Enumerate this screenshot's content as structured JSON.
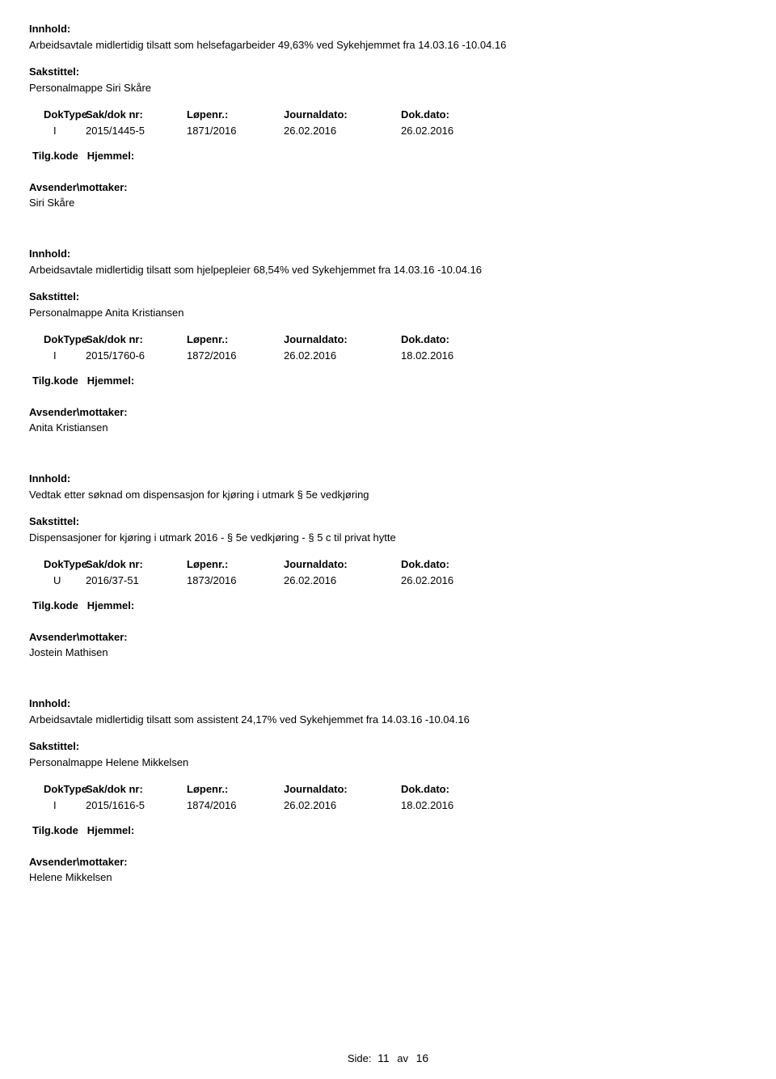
{
  "labels": {
    "innhold": "Innhold:",
    "sakstittel": "Sakstittel:",
    "doktype": "DokType",
    "sakdok": "Sak/dok nr:",
    "lopenr": "Løpenr.:",
    "journaldato": "Journaldato:",
    "dokdato": "Dok.dato:",
    "tilgkode": "Tilg.kode",
    "hjemmel": "Hjemmel:",
    "avsender": "Avsender\\mottaker:"
  },
  "records": [
    {
      "innhold": "Arbeidsavtale midlertidig tilsatt som helsefagarbeider 49,63% ved Sykehjemmet fra 14.03.16 -10.04.16",
      "sakstittel": "Personalmappe Siri Skåre",
      "doktype": "I",
      "sakdok": "2015/1445-5",
      "lopenr": "1871/2016",
      "journaldato": "26.02.2016",
      "dokdato": "26.02.2016",
      "avsender": "Siri Skåre"
    },
    {
      "innhold": "Arbeidsavtale midlertidig tilsatt som hjelpepleier 68,54% ved Sykehjemmet fra 14.03.16 -10.04.16",
      "sakstittel": "Personalmappe Anita Kristiansen",
      "doktype": "I",
      "sakdok": "2015/1760-6",
      "lopenr": "1872/2016",
      "journaldato": "26.02.2016",
      "dokdato": "18.02.2016",
      "avsender": "Anita Kristiansen"
    },
    {
      "innhold": "Vedtak etter søknad om dispensasjon for kjøring i utmark  § 5e vedkjøring",
      "sakstittel": "Dispensasjoner for kjøring i utmark 2016 - § 5e vedkjøring - § 5 c til privat hytte",
      "doktype": "U",
      "sakdok": "2016/37-51",
      "lopenr": "1873/2016",
      "journaldato": "26.02.2016",
      "dokdato": "26.02.2016",
      "avsender": "Jostein Mathisen"
    },
    {
      "innhold": "Arbeidsavtale midlertidig tilsatt som assistent 24,17% ved Sykehjemmet fra 14.03.16 -10.04.16",
      "sakstittel": "Personalmappe Helene Mikkelsen",
      "doktype": "I",
      "sakdok": "2015/1616-5",
      "lopenr": "1874/2016",
      "journaldato": "26.02.2016",
      "dokdato": "18.02.2016",
      "avsender": "Helene Mikkelsen"
    }
  ],
  "footer": {
    "side_label": "Side:",
    "page_cur": "11",
    "page_av": "av",
    "page_tot": "16"
  }
}
